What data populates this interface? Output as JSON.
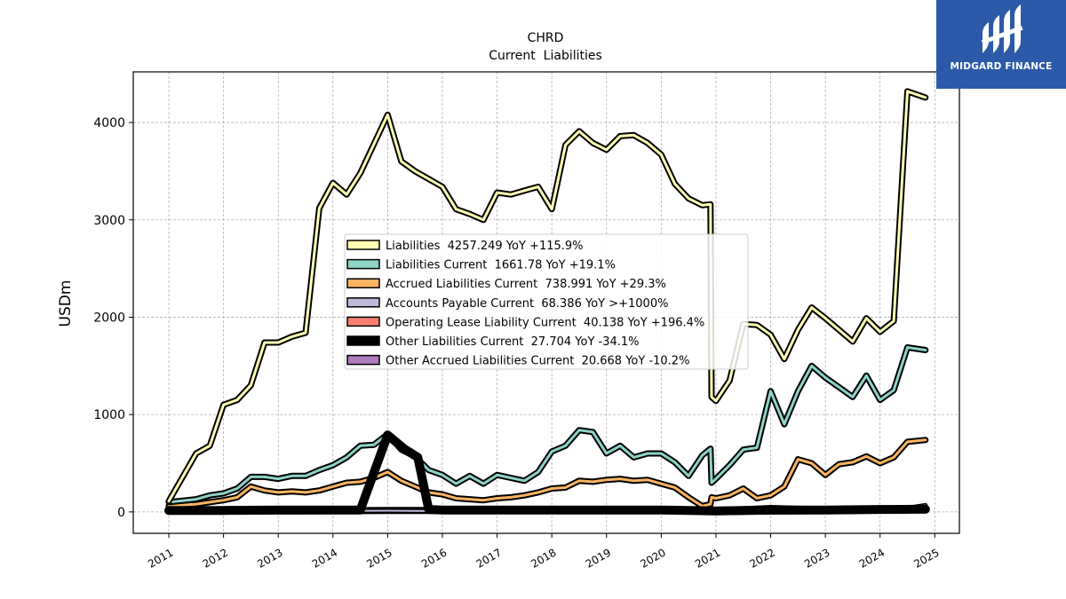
{
  "chart_data": {
    "type": "line",
    "title": "CHRD",
    "subtitle": "Current  Liabilities",
    "ylabel": "USDm",
    "xlabel": "",
    "xlim": [
      2010.35,
      2025.45
    ],
    "ylim": [
      -220,
      4520
    ],
    "x_ticks": [
      2011,
      2012,
      2013,
      2014,
      2015,
      2016,
      2017,
      2018,
      2019,
      2020,
      2021,
      2022,
      2023,
      2024,
      2025
    ],
    "x_tick_labels": [
      "2011",
      "2012",
      "2013",
      "2014",
      "2015",
      "2016",
      "2017",
      "2018",
      "2019",
      "2020",
      "2021",
      "2022",
      "2023",
      "2024",
      "2025"
    ],
    "y_ticks": [
      0,
      1000,
      2000,
      3000,
      4000
    ],
    "y_tick_labels": [
      "0",
      "1000",
      "2000",
      "3000",
      "4000"
    ],
    "grid": true,
    "legend_position": "center",
    "series": [
      {
        "name": "Liabilities",
        "legend_label": "Liabilities  4257.249 YoY +115.9%",
        "color": "#ffffb3",
        "width": 3,
        "outline": 7,
        "points": [
          [
            2011.0,
            110
          ],
          [
            2011.5,
            600
          ],
          [
            2011.75,
            680
          ],
          [
            2012.0,
            1100
          ],
          [
            2012.25,
            1150
          ],
          [
            2012.5,
            1300
          ],
          [
            2012.75,
            1740
          ],
          [
            2013.0,
            1740
          ],
          [
            2013.25,
            1800
          ],
          [
            2013.5,
            1840
          ],
          [
            2013.75,
            3120
          ],
          [
            2014.0,
            3380
          ],
          [
            2014.25,
            3260
          ],
          [
            2014.5,
            3480
          ],
          [
            2014.75,
            3780
          ],
          [
            2015.0,
            4080
          ],
          [
            2015.25,
            3600
          ],
          [
            2015.5,
            3500
          ],
          [
            2015.75,
            3420
          ],
          [
            2016.0,
            3340
          ],
          [
            2016.25,
            3110
          ],
          [
            2016.5,
            3060
          ],
          [
            2016.75,
            3000
          ],
          [
            2017.0,
            3280
          ],
          [
            2017.25,
            3260
          ],
          [
            2017.5,
            3300
          ],
          [
            2017.75,
            3340
          ],
          [
            2018.0,
            3110
          ],
          [
            2018.25,
            3770
          ],
          [
            2018.5,
            3910
          ],
          [
            2018.75,
            3790
          ],
          [
            2019.0,
            3720
          ],
          [
            2019.25,
            3860
          ],
          [
            2019.5,
            3870
          ],
          [
            2019.75,
            3790
          ],
          [
            2020.0,
            3670
          ],
          [
            2020.25,
            3370
          ],
          [
            2020.5,
            3220
          ],
          [
            2020.75,
            3150
          ],
          [
            2020.9,
            3160
          ],
          [
            2020.92,
            1180
          ],
          [
            2021.0,
            1140
          ],
          [
            2021.25,
            1350
          ],
          [
            2021.5,
            1930
          ],
          [
            2021.75,
            1920
          ],
          [
            2022.0,
            1820
          ],
          [
            2022.25,
            1570
          ],
          [
            2022.5,
            1870
          ],
          [
            2022.75,
            2100
          ],
          [
            2023.0,
            1990
          ],
          [
            2023.25,
            1870
          ],
          [
            2023.5,
            1750
          ],
          [
            2023.75,
            1990
          ],
          [
            2024.0,
            1850
          ],
          [
            2024.25,
            1960
          ],
          [
            2024.5,
            4320
          ],
          [
            2024.83,
            4257
          ]
        ]
      },
      {
        "name": "Liabilities Current",
        "legend_label": "Liabilities Current  1661.78 YoY +19.1%",
        "color": "#8dd3c7",
        "width": 3,
        "outline": 7,
        "points": [
          [
            2011.0,
            100
          ],
          [
            2011.5,
            130
          ],
          [
            2011.75,
            170
          ],
          [
            2012.0,
            190
          ],
          [
            2012.25,
            240
          ],
          [
            2012.5,
            360
          ],
          [
            2012.75,
            360
          ],
          [
            2013.0,
            340
          ],
          [
            2013.25,
            370
          ],
          [
            2013.5,
            370
          ],
          [
            2013.75,
            430
          ],
          [
            2014.0,
            480
          ],
          [
            2014.25,
            560
          ],
          [
            2014.5,
            680
          ],
          [
            2014.75,
            690
          ],
          [
            2015.0,
            800
          ],
          [
            2015.25,
            640
          ],
          [
            2015.5,
            570
          ],
          [
            2015.75,
            430
          ],
          [
            2016.0,
            380
          ],
          [
            2016.25,
            290
          ],
          [
            2016.5,
            370
          ],
          [
            2016.75,
            290
          ],
          [
            2017.0,
            380
          ],
          [
            2017.25,
            350
          ],
          [
            2017.5,
            320
          ],
          [
            2017.75,
            410
          ],
          [
            2018.0,
            620
          ],
          [
            2018.25,
            680
          ],
          [
            2018.5,
            840
          ],
          [
            2018.75,
            820
          ],
          [
            2019.0,
            600
          ],
          [
            2019.25,
            680
          ],
          [
            2019.5,
            560
          ],
          [
            2019.75,
            600
          ],
          [
            2020.0,
            600
          ],
          [
            2020.25,
            510
          ],
          [
            2020.5,
            370
          ],
          [
            2020.75,
            580
          ],
          [
            2020.9,
            650
          ],
          [
            2020.92,
            300
          ],
          [
            2021.0,
            340
          ],
          [
            2021.25,
            480
          ],
          [
            2021.5,
            640
          ],
          [
            2021.75,
            660
          ],
          [
            2022.0,
            1240
          ],
          [
            2022.25,
            900
          ],
          [
            2022.5,
            1240
          ],
          [
            2022.75,
            1500
          ],
          [
            2023.0,
            1380
          ],
          [
            2023.25,
            1280
          ],
          [
            2023.5,
            1180
          ],
          [
            2023.75,
            1400
          ],
          [
            2024.0,
            1150
          ],
          [
            2024.25,
            1250
          ],
          [
            2024.5,
            1690
          ],
          [
            2024.83,
            1662
          ]
        ]
      },
      {
        "name": "Accrued Liabilities Current",
        "legend_label": "Accrued Liabilities Current  738.991 YoY +29.3%",
        "color": "#fdb462",
        "width": 3,
        "outline": 7,
        "points": [
          [
            2011.0,
            60
          ],
          [
            2011.5,
            80
          ],
          [
            2011.75,
            100
          ],
          [
            2012.0,
            120
          ],
          [
            2012.25,
            150
          ],
          [
            2012.5,
            260
          ],
          [
            2012.75,
            220
          ],
          [
            2013.0,
            200
          ],
          [
            2013.25,
            210
          ],
          [
            2013.5,
            200
          ],
          [
            2013.75,
            220
          ],
          [
            2014.0,
            260
          ],
          [
            2014.25,
            300
          ],
          [
            2014.5,
            310
          ],
          [
            2014.75,
            350
          ],
          [
            2015.0,
            410
          ],
          [
            2015.25,
            320
          ],
          [
            2015.5,
            260
          ],
          [
            2015.75,
            200
          ],
          [
            2016.0,
            180
          ],
          [
            2016.25,
            140
          ],
          [
            2016.5,
            130
          ],
          [
            2016.75,
            120
          ],
          [
            2017.0,
            140
          ],
          [
            2017.25,
            150
          ],
          [
            2017.5,
            170
          ],
          [
            2017.75,
            200
          ],
          [
            2018.0,
            240
          ],
          [
            2018.25,
            250
          ],
          [
            2018.5,
            320
          ],
          [
            2018.75,
            310
          ],
          [
            2019.0,
            330
          ],
          [
            2019.25,
            340
          ],
          [
            2019.5,
            320
          ],
          [
            2019.75,
            330
          ],
          [
            2020.0,
            290
          ],
          [
            2020.25,
            250
          ],
          [
            2020.5,
            150
          ],
          [
            2020.75,
            60
          ],
          [
            2020.9,
            80
          ],
          [
            2020.92,
            150
          ],
          [
            2021.0,
            140
          ],
          [
            2021.25,
            170
          ],
          [
            2021.5,
            240
          ],
          [
            2021.75,
            140
          ],
          [
            2022.0,
            170
          ],
          [
            2022.25,
            260
          ],
          [
            2022.5,
            540
          ],
          [
            2022.75,
            500
          ],
          [
            2023.0,
            380
          ],
          [
            2023.25,
            490
          ],
          [
            2023.5,
            510
          ],
          [
            2023.75,
            570
          ],
          [
            2024.0,
            500
          ],
          [
            2024.25,
            560
          ],
          [
            2024.5,
            720
          ],
          [
            2024.83,
            739
          ]
        ]
      },
      {
        "name": "Accounts Payable Current",
        "legend_label": "Accounts Payable Current  68.386 YoY >+1000%",
        "color": "#bebada",
        "width": 2,
        "outline": 5,
        "points": [
          [
            2011.0,
            20
          ],
          [
            2012.0,
            10
          ],
          [
            2013.0,
            15
          ],
          [
            2014.0,
            10
          ],
          [
            2015.0,
            12
          ],
          [
            2016.0,
            8
          ],
          [
            2017.0,
            10
          ],
          [
            2018.0,
            12
          ],
          [
            2019.0,
            10
          ],
          [
            2020.0,
            8
          ],
          [
            2021.0,
            -10
          ],
          [
            2022.0,
            -5
          ],
          [
            2023.0,
            0
          ],
          [
            2024.0,
            5
          ],
          [
            2024.5,
            40
          ],
          [
            2024.83,
            68
          ]
        ]
      },
      {
        "name": "Operating Lease Liability Current",
        "legend_label": "Operating Lease Liability Current  40.138 YoY +196.4%",
        "color": "#fb8072",
        "width": 2,
        "outline": 5,
        "points": [
          [
            2011.0,
            5
          ],
          [
            2013.0,
            5
          ],
          [
            2015.0,
            5
          ],
          [
            2017.0,
            5
          ],
          [
            2019.0,
            5
          ],
          [
            2020.0,
            10
          ],
          [
            2021.0,
            10
          ],
          [
            2022.0,
            20
          ],
          [
            2023.0,
            15
          ],
          [
            2024.0,
            20
          ],
          [
            2024.83,
            40
          ]
        ]
      },
      {
        "name": "Other Liabilities Current",
        "legend_label": "Other Liabilities Current  27.704 YoY -34.1%",
        "color": "#000000",
        "width": 10,
        "outline": 0,
        "points": [
          [
            2011.0,
            15
          ],
          [
            2012.0,
            15
          ],
          [
            2013.0,
            20
          ],
          [
            2014.0,
            20
          ],
          [
            2014.5,
            20
          ],
          [
            2015.0,
            790
          ],
          [
            2015.3,
            650
          ],
          [
            2015.55,
            560
          ],
          [
            2015.75,
            25
          ],
          [
            2016.0,
            20
          ],
          [
            2017.0,
            20
          ],
          [
            2018.0,
            20
          ],
          [
            2019.0,
            20
          ],
          [
            2020.0,
            20
          ],
          [
            2021.0,
            10
          ],
          [
            2022.0,
            20
          ],
          [
            2023.0,
            20
          ],
          [
            2024.0,
            25
          ],
          [
            2024.83,
            28
          ]
        ]
      },
      {
        "name": "Other Accrued Liabilities Current",
        "legend_label": "Other Accrued Liabilities Current  20.668 YoY -10.2%",
        "color": "#b07bbf",
        "width": 4,
        "outline": 8,
        "points": [
          [
            2011.0,
            10
          ],
          [
            2013.0,
            10
          ],
          [
            2015.0,
            15
          ],
          [
            2017.0,
            15
          ],
          [
            2019.0,
            20
          ],
          [
            2020.0,
            20
          ],
          [
            2021.0,
            10
          ],
          [
            2022.0,
            35
          ],
          [
            2023.0,
            20
          ],
          [
            2024.0,
            25
          ],
          [
            2024.83,
            21
          ]
        ]
      }
    ],
    "noise_series_color": "#000000"
  },
  "logo": {
    "text": "MIDGARD FINANCE",
    "color": "#2c5aa8"
  }
}
